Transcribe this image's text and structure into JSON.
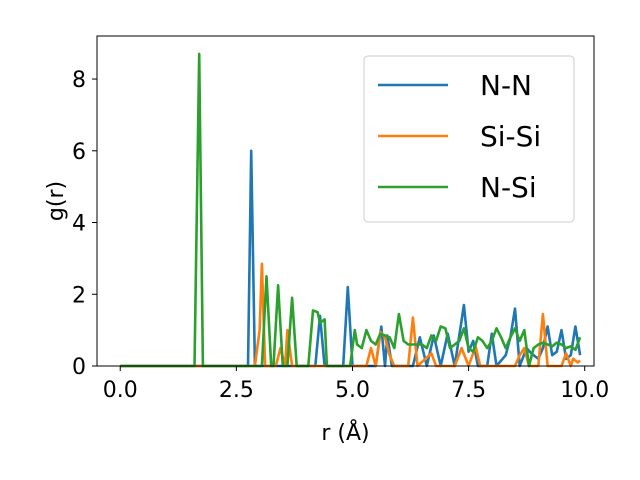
{
  "chart_data": {
    "type": "line",
    "xlabel": "r (Å)",
    "ylabel": "g(r)",
    "xlim": [
      -0.5,
      10.2
    ],
    "ylim": [
      0,
      9.2
    ],
    "xticks": [
      0.0,
      2.5,
      5.0,
      7.5,
      10.0
    ],
    "xtick_labels": [
      "0.0",
      "2.5",
      "5.0",
      "7.5",
      "10.0"
    ],
    "yticks": [
      0,
      2,
      4,
      6,
      8
    ],
    "ytick_labels": [
      "0",
      "2",
      "4",
      "6",
      "8"
    ],
    "grid": false,
    "legend": "top-right",
    "series": [
      {
        "name": "N-N",
        "color": "#1f77b4",
        "points": [
          [
            0,
            0
          ],
          [
            2.65,
            0
          ],
          [
            2.75,
            0
          ],
          [
            2.82,
            6.0
          ],
          [
            2.9,
            0
          ],
          [
            4.2,
            0
          ],
          [
            4.3,
            1.4
          ],
          [
            4.4,
            0
          ],
          [
            4.8,
            0
          ],
          [
            4.9,
            2.2
          ],
          [
            5.0,
            0
          ],
          [
            5.5,
            0
          ],
          [
            5.62,
            1.1
          ],
          [
            5.7,
            0
          ],
          [
            5.75,
            0.85
          ],
          [
            5.85,
            0
          ],
          [
            6.3,
            0
          ],
          [
            6.45,
            0.8
          ],
          [
            6.6,
            0
          ],
          [
            6.75,
            0.85
          ],
          [
            6.9,
            0
          ],
          [
            7.05,
            0.9
          ],
          [
            7.2,
            0
          ],
          [
            7.4,
            1.7
          ],
          [
            7.5,
            0.4
          ],
          [
            7.6,
            0.7
          ],
          [
            7.7,
            0
          ],
          [
            7.9,
            0
          ],
          [
            8.0,
            0.9
          ],
          [
            8.1,
            0
          ],
          [
            8.3,
            0.3
          ],
          [
            8.4,
            0.8
          ],
          [
            8.5,
            1.6
          ],
          [
            8.6,
            0
          ],
          [
            8.75,
            0.5
          ],
          [
            8.85,
            0.35
          ],
          [
            9.0,
            0.2
          ],
          [
            9.1,
            0.5
          ],
          [
            9.2,
            1.1
          ],
          [
            9.3,
            0.3
          ],
          [
            9.4,
            0.4
          ],
          [
            9.5,
            1.0
          ],
          [
            9.6,
            0.2
          ],
          [
            9.7,
            0.3
          ],
          [
            9.8,
            1.1
          ],
          [
            9.9,
            0.3
          ]
        ]
      },
      {
        "name": "Si-Si",
        "color": "#ff7f0e",
        "points": [
          [
            0,
            0
          ],
          [
            2.9,
            0
          ],
          [
            3.0,
            1.0
          ],
          [
            3.05,
            2.85
          ],
          [
            3.12,
            0
          ],
          [
            3.35,
            0
          ],
          [
            3.45,
            0.5
          ],
          [
            3.55,
            0
          ],
          [
            3.6,
            1.0
          ],
          [
            3.7,
            0
          ],
          [
            5.3,
            0
          ],
          [
            5.4,
            0.5
          ],
          [
            5.5,
            0
          ],
          [
            5.6,
            0.95
          ],
          [
            5.7,
            0.8
          ],
          [
            5.8,
            0.3
          ],
          [
            5.9,
            0
          ],
          [
            6.2,
            0
          ],
          [
            6.3,
            1.35
          ],
          [
            6.4,
            0
          ],
          [
            6.7,
            0.35
          ],
          [
            6.8,
            0
          ],
          [
            7.2,
            0
          ],
          [
            7.35,
            0.5
          ],
          [
            7.5,
            0
          ],
          [
            7.65,
            0.55
          ],
          [
            7.75,
            0
          ],
          [
            8.5,
            0
          ],
          [
            8.6,
            0.3
          ],
          [
            8.7,
            0.5
          ],
          [
            8.8,
            0
          ],
          [
            9.0,
            0
          ],
          [
            9.1,
            1.45
          ],
          [
            9.2,
            0
          ],
          [
            9.5,
            0
          ],
          [
            9.6,
            0.35
          ],
          [
            9.7,
            0
          ],
          [
            9.75,
            0.2
          ],
          [
            9.85,
            0.1
          ],
          [
            9.9,
            0.15
          ]
        ]
      },
      {
        "name": "N-Si",
        "color": "#2ca02c",
        "points": [
          [
            0,
            0
          ],
          [
            1.6,
            0
          ],
          [
            1.7,
            8.7
          ],
          [
            1.78,
            0
          ],
          [
            1.85,
            0
          ],
          [
            2.9,
            0
          ],
          [
            3.05,
            0
          ],
          [
            3.15,
            2.5
          ],
          [
            3.25,
            0
          ],
          [
            3.3,
            0
          ],
          [
            3.4,
            2.25
          ],
          [
            3.5,
            0
          ],
          [
            3.6,
            0
          ],
          [
            3.7,
            1.9
          ],
          [
            3.8,
            0
          ],
          [
            4.05,
            0
          ],
          [
            4.15,
            1.55
          ],
          [
            4.25,
            1.5
          ],
          [
            4.3,
            1.2
          ],
          [
            4.4,
            1.3
          ],
          [
            4.45,
            0
          ],
          [
            4.95,
            0
          ],
          [
            5.05,
            1.0
          ],
          [
            5.1,
            0.6
          ],
          [
            5.2,
            0.5
          ],
          [
            5.3,
            1.0
          ],
          [
            5.4,
            0.7
          ],
          [
            5.5,
            0.6
          ],
          [
            5.6,
            0.9
          ],
          [
            5.7,
            0.85
          ],
          [
            5.8,
            0.8
          ],
          [
            5.9,
            0.5
          ],
          [
            6.0,
            1.45
          ],
          [
            6.1,
            0.7
          ],
          [
            6.2,
            0.6
          ],
          [
            6.4,
            0.6
          ],
          [
            6.5,
            0.6
          ],
          [
            6.6,
            0.5
          ],
          [
            6.7,
            0.85
          ],
          [
            6.8,
            0.7
          ],
          [
            6.9,
            1.1
          ],
          [
            7.0,
            1.05
          ],
          [
            7.1,
            0.5
          ],
          [
            7.2,
            0.6
          ],
          [
            7.3,
            0.7
          ],
          [
            7.4,
            1.05
          ],
          [
            7.5,
            0.5
          ],
          [
            7.6,
            0.4
          ],
          [
            7.7,
            0.8
          ],
          [
            7.8,
            0.7
          ],
          [
            7.9,
            0.5
          ],
          [
            8.0,
            0.7
          ],
          [
            8.1,
            1.05
          ],
          [
            8.2,
            0.8
          ],
          [
            8.3,
            0.5
          ],
          [
            8.4,
            0.8
          ],
          [
            8.5,
            1.05
          ],
          [
            8.6,
            0.7
          ],
          [
            8.7,
            1.0
          ],
          [
            8.8,
            0
          ],
          [
            8.9,
            0.5
          ],
          [
            9.0,
            0.6
          ],
          [
            9.1,
            0.65
          ],
          [
            9.2,
            0.6
          ],
          [
            9.3,
            0.55
          ],
          [
            9.4,
            0.65
          ],
          [
            9.5,
            0.6
          ],
          [
            9.6,
            0.5
          ],
          [
            9.7,
            0.55
          ],
          [
            9.8,
            0.45
          ],
          [
            9.9,
            0.8
          ]
        ]
      }
    ]
  }
}
